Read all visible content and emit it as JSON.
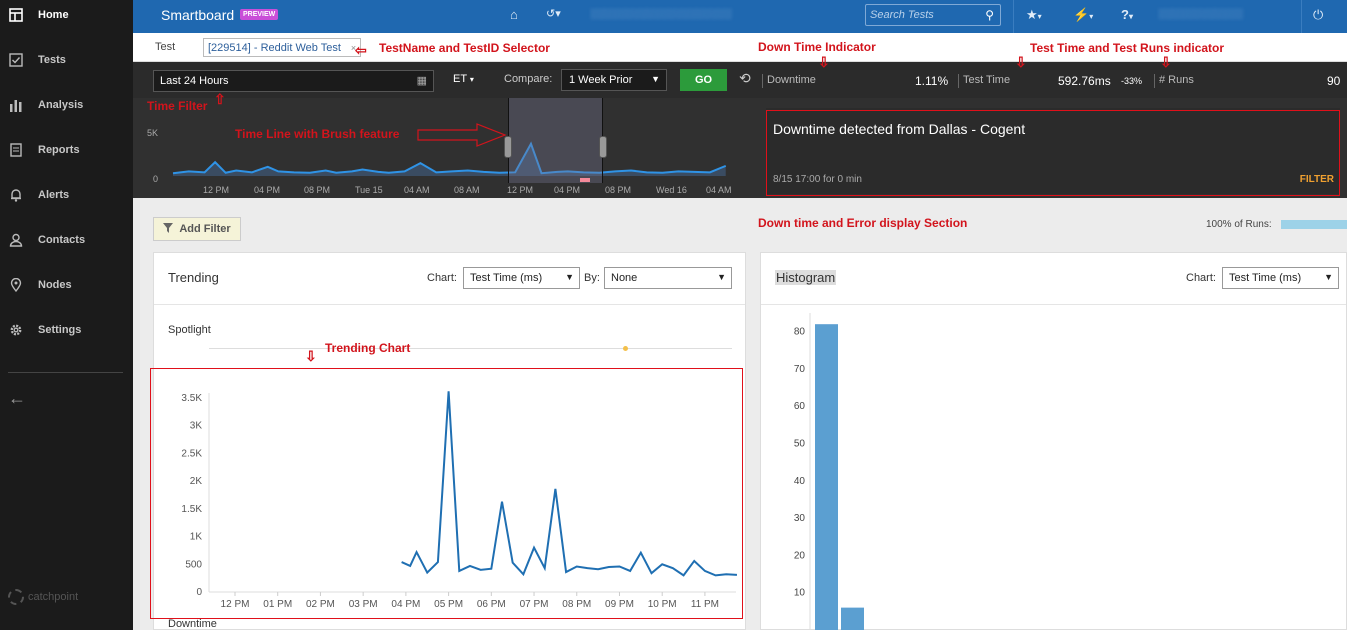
{
  "sidebar": {
    "items": [
      {
        "label": "Home",
        "icon": "home-dashboard-icon",
        "active": true
      },
      {
        "label": "Tests",
        "icon": "checkbox-icon"
      },
      {
        "label": "Analysis",
        "icon": "bar-chart-icon"
      },
      {
        "label": "Reports",
        "icon": "document-icon"
      },
      {
        "label": "Alerts",
        "icon": "bell-icon"
      },
      {
        "label": "Contacts",
        "icon": "person-icon"
      },
      {
        "label": "Nodes",
        "icon": "map-pin-icon"
      },
      {
        "label": "Settings",
        "icon": "gear-icon"
      }
    ],
    "brand": "catchpoint"
  },
  "header": {
    "title": "Smartboard",
    "badge": "PREVIEW",
    "search_placeholder": "Search Tests"
  },
  "test_row": {
    "label": "Test",
    "tag": "[229514] - Reddit Web Test",
    "tag_close": "×"
  },
  "controls": {
    "time_range": "Last 24 Hours",
    "timezone": "ET",
    "compare_label": "Compare:",
    "compare_value": "1 Week Prior",
    "go_label": "GO",
    "downtime_label": "Downtime",
    "downtime_value": "1.11%",
    "test_time_label": "Test Time",
    "test_time_value": "592.76ms",
    "test_time_delta": "-33%",
    "runs_label": "# Runs",
    "runs_value": "90"
  },
  "timeline": {
    "y_labels": [
      "5K",
      "0"
    ],
    "x_labels": [
      "12 PM",
      "04 PM",
      "08 PM",
      "Tue 15",
      "04 AM",
      "08 AM",
      "12 PM",
      "04 PM",
      "08 PM",
      "Wed 16",
      "04 AM"
    ]
  },
  "downtime_panel": {
    "title": "Downtime detected from Dallas - Cogent",
    "when": "8/15 17:00 for 0 min",
    "filter_label": "FILTER"
  },
  "filters": {
    "add_filter_label": "Add Filter",
    "runs_pct_label": "100% of Runs:",
    "runs_pct": 1.0
  },
  "trending": {
    "title": "Trending",
    "chart_label": "Chart:",
    "chart_value": "Test Time (ms)",
    "by_label": "By:",
    "by_value": "None",
    "spotlight_label": "Spotlight",
    "footer_label": "Downtime"
  },
  "histogram": {
    "title": "Histogram",
    "chart_label": "Chart:",
    "chart_value": "Test Time (ms)"
  },
  "annotations": {
    "testname": "TestName and TestID Selector",
    "downtime_ind": "Down Time Indicator",
    "testtime_ind": "Test Time and Test Runs indicator",
    "time_filter": "Time Filter",
    "timeline_brush": "Time Line with Brush feature",
    "downtime_section": "Down time and Error display Section",
    "trending_chart": "Trending Chart"
  },
  "colors": {
    "sidebar_bg": "#1b1b1b",
    "header_bg": "#1f68b0",
    "series": "#1f6fb2",
    "histogram_bar": "#5b9fd1",
    "annotation": "#d2141c"
  },
  "chart_data": [
    {
      "type": "line",
      "title": "Trending",
      "categories": [
        "12 PM",
        "01 PM",
        "02 PM",
        "03 PM",
        "04 PM",
        "05 PM",
        "06 PM",
        "07 PM",
        "08 PM",
        "09 PM",
        "10 PM",
        "11 PM"
      ],
      "ylim": [
        0,
        3500
      ],
      "yticks": [
        0,
        500,
        1000,
        1500,
        2000,
        2500,
        3000,
        3500
      ],
      "ytick_labels": [
        "0",
        "500",
        "1K",
        "1.5K",
        "2K",
        "2.5K",
        "3K",
        "3.5K"
      ],
      "series": [
        {
          "x": [
            3.9,
            4.1,
            4.25,
            4.5,
            4.75,
            5.0,
            5.25,
            5.5,
            5.75,
            6.0,
            6.25,
            6.5,
            6.75,
            7.0,
            7.25,
            7.5,
            7.75,
            8.0,
            8.25,
            8.5,
            8.75,
            9.0,
            9.25,
            9.5,
            9.75,
            10.0,
            10.25,
            10.5,
            10.75,
            11.0,
            11.25,
            11.5,
            11.75
          ],
          "values": [
            540,
            470,
            720,
            350,
            540,
            3620,
            380,
            470,
            400,
            420,
            1630,
            530,
            320,
            800,
            430,
            1860,
            360,
            460,
            430,
            410,
            450,
            460,
            380,
            710,
            340,
            500,
            430,
            300,
            560,
            380,
            300,
            320,
            310
          ]
        }
      ]
    },
    {
      "type": "bar",
      "title": "Histogram",
      "ylim": [
        0,
        85
      ],
      "yticks": [
        10,
        20,
        30,
        40,
        50,
        60,
        70,
        80
      ],
      "values": [
        82,
        6
      ]
    },
    {
      "type": "line",
      "ylim": [
        0,
        5000
      ],
      "yticks": [
        0,
        5000
      ],
      "ytick_labels": [
        "0",
        "5K"
      ],
      "categories": [
        "12 PM",
        "04 PM",
        "08 PM",
        "Tue 15",
        "04 AM",
        "08 AM",
        "12 PM",
        "04 PM",
        "08 PM",
        "Wed 16",
        "04 AM"
      ],
      "series": [
        {
          "x": [
            0,
            0.3,
            0.6,
            0.8,
            1.0,
            1.2,
            1.5,
            1.8,
            2.0,
            2.3,
            2.6,
            2.9,
            3.1,
            3.4,
            3.6,
            3.9,
            4.1,
            4.4,
            4.7,
            5.0,
            5.3,
            5.6,
            5.9,
            6.2,
            6.5,
            6.8,
            7.0,
            7.3,
            7.5,
            7.8,
            8.1,
            8.4,
            8.7,
            9.0,
            9.3,
            9.6,
            9.9,
            10.2,
            10.5
          ],
          "values": [
            300,
            500,
            400,
            1500,
            350,
            600,
            400,
            1000,
            500,
            400,
            350,
            600,
            350,
            500,
            700,
            450,
            350,
            500,
            1400,
            400,
            500,
            600,
            450,
            350,
            400,
            3500,
            300,
            450,
            500,
            400,
            350,
            500,
            600,
            400,
            350,
            500,
            450,
            400,
            1100
          ]
        }
      ]
    }
  ]
}
